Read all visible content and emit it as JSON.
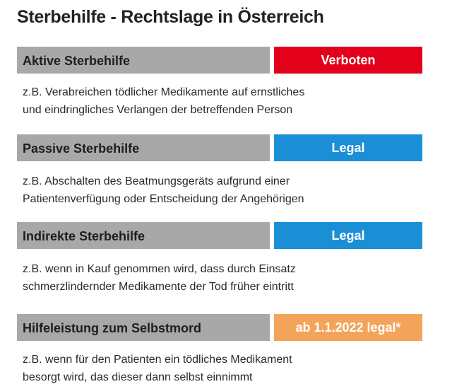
{
  "title": "Sterbehilfe - Rechtslage in Österreich",
  "rows": [
    {
      "label": "Aktive Sterbehilfe",
      "status": "Verboten",
      "status_color": "#e2001a",
      "desc_line1": "z.B. Verabreichen tödlicher Medikamente auf ernstliches",
      "desc_line2": "und eindringliches Verlangen der betreffenden Person"
    },
    {
      "label": "Passive Sterbehilfe",
      "status": "Legal",
      "status_color": "#1b8fd6",
      "desc_line1": "z.B. Abschalten des Beatmungsgeräts aufgrund einer",
      "desc_line2": "Patientenverfügung oder Entscheidung der Angehörigen"
    },
    {
      "label": "Indirekte Sterbehilfe",
      "status": "Legal",
      "status_color": "#1b8fd6",
      "desc_line1": "z.B. wenn in Kauf genommen wird, dass durch Einsatz",
      "desc_line2": "schmerzlindernder Medikamente der Tod früher eintritt"
    },
    {
      "label": "Hilfeleistung zum Selbstmord",
      "status": "ab 1.1.2022 legal*",
      "status_color": "#f4a35b",
      "desc_line1": "z.B. wenn für den Patienten ein tödliches Medikament",
      "desc_line2": "besorgt wird, das dieser dann selbst einnimmt"
    }
  ]
}
